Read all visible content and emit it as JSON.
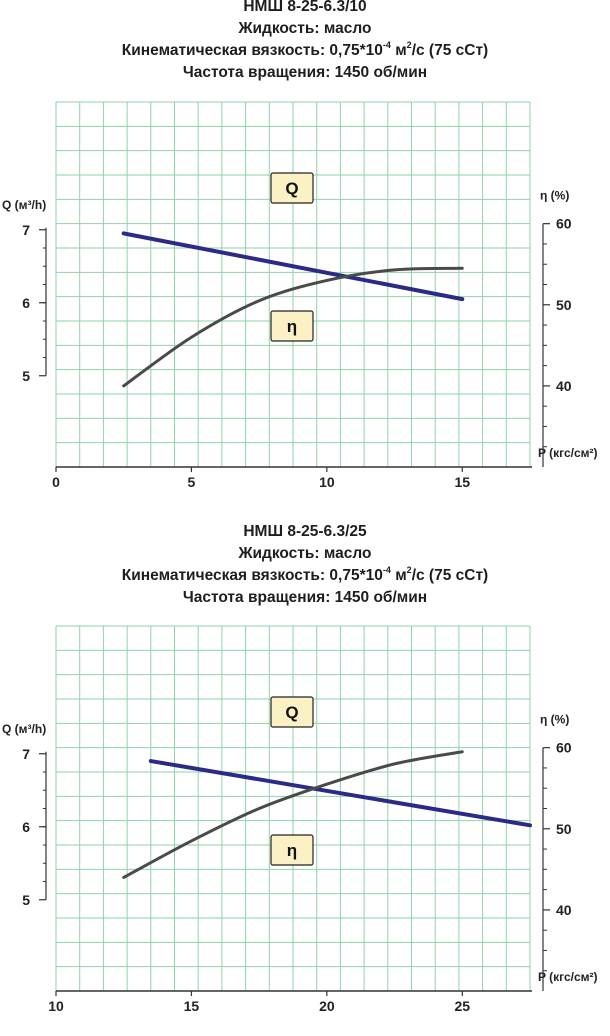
{
  "charts": [
    {
      "title_lines": {
        "model": "НМШ 8-25-6.3/10",
        "liquid": "Жидкость: масло",
        "viscosity_prefix": "Кинематическая вязкость: 0,75*10",
        "viscosity_exp": "-4",
        "viscosity_mid": " м",
        "viscosity_sq": "2",
        "viscosity_suffix": "/с (75 сСт)",
        "rotation": "Частота вращения: 1450 об/мин"
      }
    },
    {
      "title_lines": {
        "model": "НМШ 8-25-6.3/25",
        "liquid": "Жидкость: масло",
        "viscosity_prefix": "Кинематическая вязкость: 0,75*10",
        "viscosity_exp": "-4",
        "viscosity_mid": " м",
        "viscosity_sq": "2",
        "viscosity_suffix": "/с (75 сСт)",
        "rotation": "Частота вращения: 1450 об/мин"
      }
    }
  ],
  "colors": {
    "grid": "#8fd3a8",
    "q_line": "#2b2a86",
    "eta_line": "#4a4a4a",
    "badge_fill": "#fbf1c4",
    "axis": "#333333"
  },
  "chart_data": [
    {
      "type": "line",
      "title": "НМШ 8-25-6.3/10",
      "xlabel": "P (кгс/см²)",
      "ylabel_left": "Q (м³/h)",
      "ylabel_right": "η (%)",
      "xlim": [
        0,
        17.5
      ],
      "xticks": [
        0,
        5,
        10,
        15
      ],
      "ylim_left": [
        3.75,
        8.75
      ],
      "yticks_left": [
        5,
        6,
        7
      ],
      "ylim_right": [
        30,
        75
      ],
      "yticks_right": [
        40,
        50,
        60
      ],
      "grid": true,
      "series": [
        {
          "name": "Q",
          "axis": "left",
          "label": "Q",
          "x": [
            2.5,
            15
          ],
          "y": [
            6.95,
            6.05
          ]
        },
        {
          "name": "η",
          "axis": "right",
          "label": "η",
          "x": [
            2.5,
            5,
            7.5,
            10,
            12.5,
            15
          ],
          "y": [
            40,
            46,
            50.5,
            53,
            54.3,
            54.5
          ]
        }
      ]
    },
    {
      "type": "line",
      "title": "НМШ 8-25-6.3/25",
      "xlabel": "P (кгс/см²)",
      "ylabel_left": "Q (м³/h)",
      "ylabel_right": "η (%)",
      "xlim": [
        10,
        27.5
      ],
      "xticks": [
        10,
        15,
        20,
        25
      ],
      "ylim_left": [
        3.75,
        8.75
      ],
      "yticks_left": [
        5,
        6,
        7
      ],
      "ylim_right": [
        30,
        75
      ],
      "yticks_right": [
        40,
        50,
        60
      ],
      "grid": true,
      "series": [
        {
          "name": "Q",
          "axis": "left",
          "label": "Q",
          "x": [
            13.5,
            27.5
          ],
          "y": [
            6.9,
            6.02
          ]
        },
        {
          "name": "η",
          "axis": "right",
          "label": "η",
          "x": [
            12.5,
            15,
            17.5,
            20,
            22.5,
            25
          ],
          "y": [
            44,
            48.5,
            52.5,
            55.5,
            58,
            59.5
          ]
        }
      ]
    }
  ]
}
